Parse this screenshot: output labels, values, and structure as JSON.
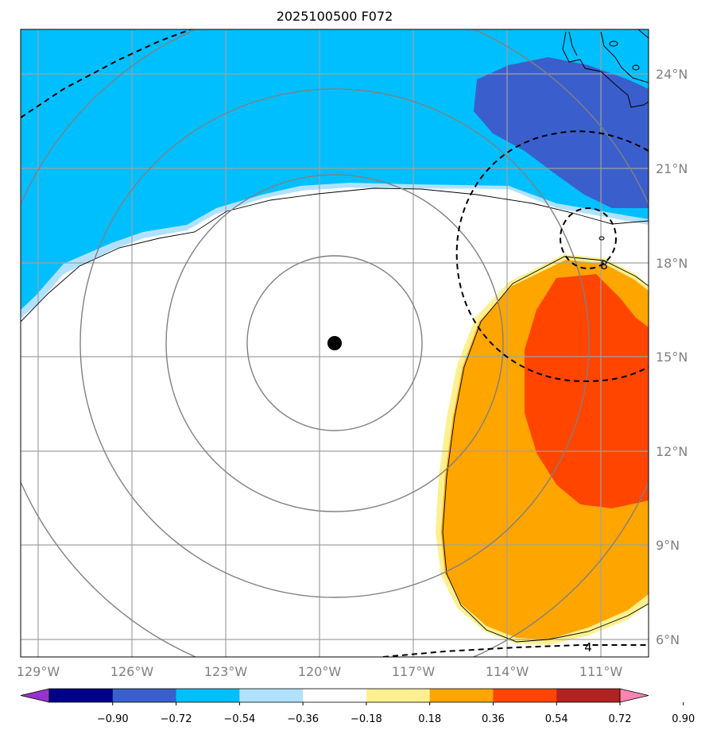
{
  "title": "2025100500 F072",
  "map": {
    "lon_labels": [
      "129°W",
      "126°W",
      "123°W",
      "120°W",
      "117°W",
      "114°W",
      "111°W"
    ],
    "lat_labels": [
      "24°N",
      "21°N",
      "18°N",
      "15°N",
      "12°N",
      "9°N",
      "6°N"
    ],
    "storm_center": {
      "lon": "119.6°W",
      "lat": "15.4°N"
    },
    "contour_labels": [
      "8",
      "4"
    ]
  },
  "colorbar": {
    "tick_labels": [
      "−0.90",
      "−0.72",
      "−0.54",
      "−0.36",
      "−0.18",
      "0.18",
      "0.36",
      "0.54",
      "0.72",
      "0.90"
    ],
    "colors": [
      "#9932cc",
      "#00008b",
      "#3a5fcd",
      "#00bfff",
      "#b0e2ff",
      "#ffffff",
      "#fff08f",
      "#ffa500",
      "#ff4500",
      "#b22222",
      "#ff83b0"
    ]
  },
  "colors": {
    "grid": "#a0a0a0",
    "range_rings": "#808080",
    "coast": "#000000"
  }
}
